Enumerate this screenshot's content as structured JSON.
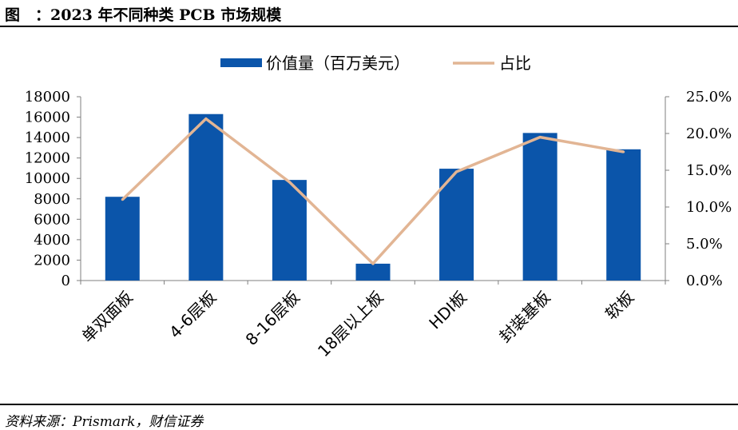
{
  "header": {
    "title": "图　：2023 年不同种类 PCB 市场规模"
  },
  "footer": {
    "source": "资料来源：Prismark，财信证券"
  },
  "chart_data": {
    "type": "bar",
    "categories": [
      "单双面板",
      "4-6层板",
      "8-16层板",
      "18层以上板",
      "HDI板",
      "封装基板",
      "软板"
    ],
    "series": [
      {
        "name": "价值量（百万美元）",
        "type": "bar",
        "axis": "left",
        "color": "#0B55AA",
        "values": [
          8200,
          16300,
          9850,
          1650,
          10950,
          14450,
          12850
        ]
      },
      {
        "name": "占比",
        "type": "line",
        "axis": "right",
        "color": "#E2B594",
        "values": [
          0.11,
          0.22,
          0.134,
          0.023,
          0.148,
          0.195,
          0.175
        ]
      }
    ],
    "y_left": {
      "ylim": [
        0,
        18000
      ],
      "ticks": [
        "0",
        "2000",
        "4000",
        "6000",
        "8000",
        "10000",
        "12000",
        "14000",
        "16000",
        "18000"
      ]
    },
    "y_right": {
      "ylim": [
        0,
        0.25
      ],
      "ticks": [
        "0.0%",
        "5.0%",
        "10.0%",
        "15.0%",
        "20.0%",
        "25.0%"
      ]
    },
    "legend_position": "top-center",
    "grid": false
  }
}
